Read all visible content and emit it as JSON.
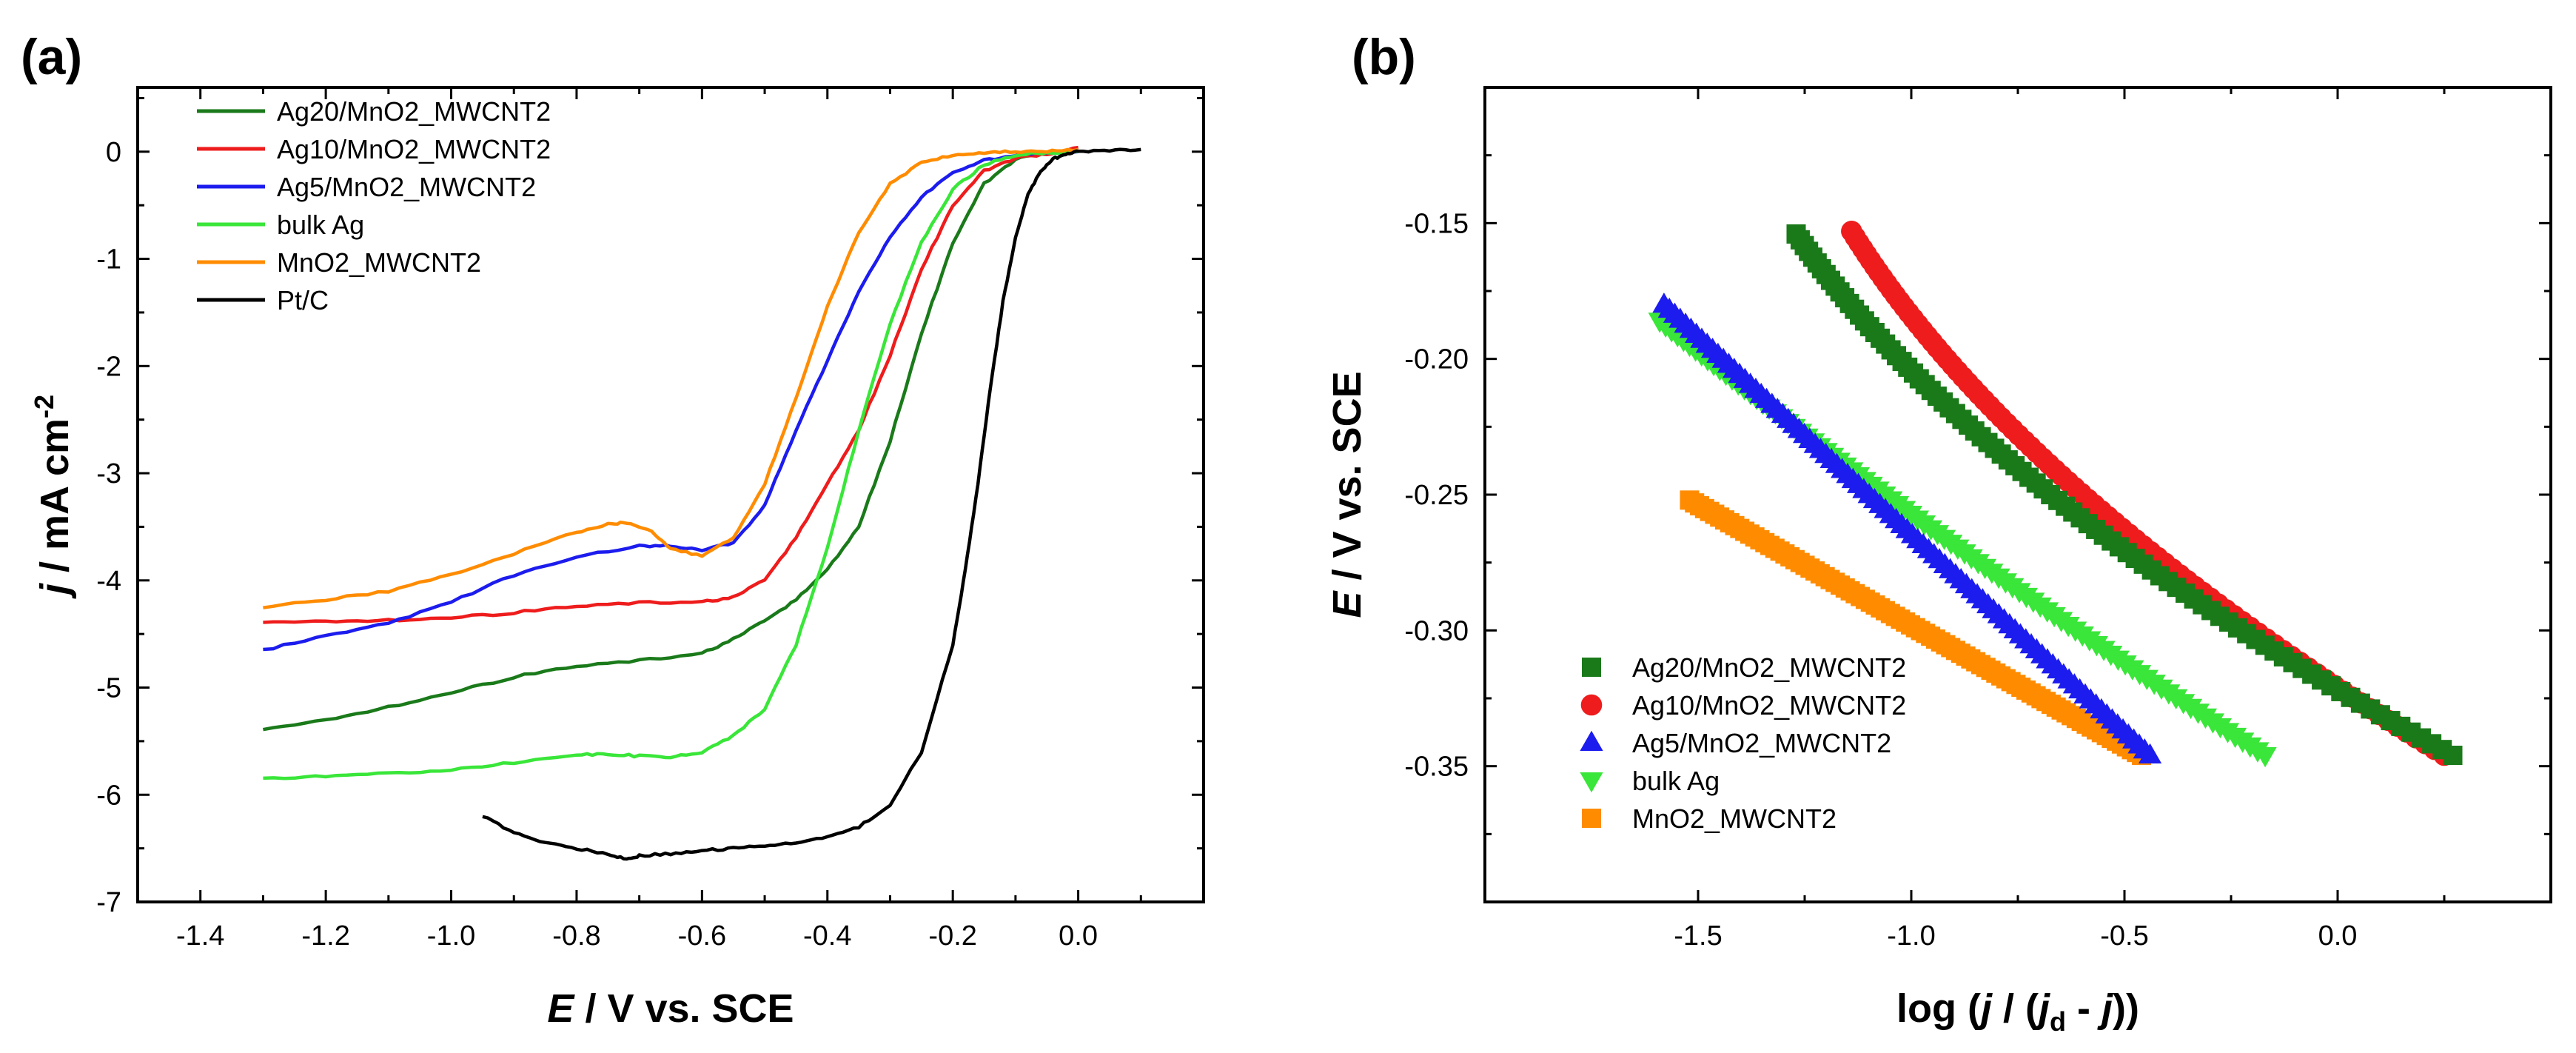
{
  "chart_data": [
    {
      "panel": "(a)",
      "type": "line",
      "xlabel": {
        "italic": "E",
        "rest": " / V vs. SCE"
      },
      "ylabel": {
        "italic": "j",
        "rest": " / mA cm",
        "sup": "-2"
      },
      "xlim": [
        -1.5,
        0.2
      ],
      "ylim": [
        -7,
        0.6
      ],
      "xticks": [
        -1.4,
        -1.2,
        -1.0,
        -0.8,
        -0.6,
        -0.4,
        -0.2,
        0.0
      ],
      "xtick_labels": [
        "-1.4",
        "-1.2",
        "-1.0",
        "-0.8",
        "-0.6",
        "-0.4",
        "-0.2",
        "0.0"
      ],
      "yticks": [
        0,
        -1,
        -2,
        -3,
        -4,
        -5,
        -6,
        -7
      ],
      "ytick_labels": [
        "0",
        "-1",
        "-2",
        "-3",
        "-4",
        "-5",
        "-6",
        "-7"
      ],
      "legend_position": "top-left",
      "series": [
        {
          "name": "Ag20/MnO2_MWCNT2",
          "color": "#1a7a1a",
          "x": [
            -1.3,
            -1.2,
            -1.1,
            -1.0,
            -0.9,
            -0.8,
            -0.7,
            -0.6,
            -0.55,
            -0.5,
            -0.45,
            -0.4,
            -0.35,
            -0.3,
            -0.25,
            -0.2,
            -0.15,
            -0.1,
            -0.05,
            0.0
          ],
          "y": [
            -5.4,
            -5.3,
            -5.18,
            -5.05,
            -4.9,
            -4.8,
            -4.75,
            -4.68,
            -4.55,
            -4.38,
            -4.18,
            -3.9,
            -3.5,
            -2.7,
            -1.7,
            -0.85,
            -0.3,
            -0.07,
            -0.01,
            0.02
          ]
        },
        {
          "name": "Ag10/MnO2_MWCNT2",
          "color": "#ee1c1c",
          "x": [
            -1.3,
            -1.2,
            -1.1,
            -1.0,
            -0.9,
            -0.8,
            -0.7,
            -0.6,
            -0.55,
            -0.5,
            -0.45,
            -0.4,
            -0.35,
            -0.3,
            -0.25,
            -0.2,
            -0.15,
            -0.1,
            -0.05,
            0.0
          ],
          "y": [
            -4.4,
            -4.38,
            -4.37,
            -4.35,
            -4.3,
            -4.24,
            -4.21,
            -4.2,
            -4.16,
            -4.0,
            -3.6,
            -3.1,
            -2.6,
            -1.9,
            -1.1,
            -0.5,
            -0.18,
            -0.06,
            -0.02,
            0.04
          ]
        },
        {
          "name": "Ag5/MnO2_MWCNT2",
          "color": "#1c1cee",
          "x": [
            -1.3,
            -1.2,
            -1.1,
            -1.0,
            -0.9,
            -0.8,
            -0.7,
            -0.65,
            -0.6,
            -0.55,
            -0.5,
            -0.45,
            -0.4,
            -0.35,
            -0.3,
            -0.25,
            -0.2,
            -0.15,
            -0.1,
            -0.05,
            0.0
          ],
          "y": [
            -4.65,
            -4.52,
            -4.4,
            -4.2,
            -3.95,
            -3.78,
            -3.68,
            -3.68,
            -3.72,
            -3.65,
            -3.3,
            -2.6,
            -1.95,
            -1.3,
            -0.8,
            -0.42,
            -0.2,
            -0.08,
            -0.03,
            -0.01,
            0.0
          ]
        },
        {
          "name": "bulk Ag",
          "color": "#39e639",
          "x": [
            -1.3,
            -1.2,
            -1.1,
            -1.0,
            -0.9,
            -0.8,
            -0.75,
            -0.7,
            -0.65,
            -0.6,
            -0.55,
            -0.5,
            -0.45,
            -0.4,
            -0.35,
            -0.3,
            -0.25,
            -0.2,
            -0.15,
            -0.1,
            -0.05,
            0.0
          ],
          "y": [
            -5.85,
            -5.83,
            -5.8,
            -5.77,
            -5.7,
            -5.63,
            -5.62,
            -5.64,
            -5.65,
            -5.6,
            -5.45,
            -5.2,
            -4.6,
            -3.7,
            -2.6,
            -1.6,
            -0.85,
            -0.35,
            -0.12,
            -0.03,
            -0.01,
            0.0
          ]
        },
        {
          "name": "MnO2_MWCNT2",
          "color": "#ff8c00",
          "x": [
            -1.3,
            -1.2,
            -1.1,
            -1.0,
            -0.9,
            -0.8,
            -0.75,
            -0.72,
            -0.68,
            -0.65,
            -0.6,
            -0.55,
            -0.5,
            -0.45,
            -0.4,
            -0.35,
            -0.3,
            -0.25,
            -0.2,
            -0.15,
            -0.1,
            -0.05,
            0.0
          ],
          "y": [
            -4.25,
            -4.18,
            -4.1,
            -3.95,
            -3.75,
            -3.55,
            -3.47,
            -3.46,
            -3.55,
            -3.7,
            -3.77,
            -3.6,
            -3.1,
            -2.3,
            -1.45,
            -0.75,
            -0.3,
            -0.1,
            -0.03,
            -0.01,
            0.0,
            0.0,
            0.02
          ]
        },
        {
          "name": "Pt/C",
          "color": "#000000",
          "x": [
            -0.95,
            -0.9,
            -0.85,
            -0.8,
            -0.75,
            -0.72,
            -0.7,
            -0.65,
            -0.6,
            -0.55,
            -0.5,
            -0.45,
            -0.4,
            -0.35,
            -0.3,
            -0.25,
            -0.2,
            -0.18,
            -0.16,
            -0.14,
            -0.12,
            -0.1,
            -0.08,
            -0.06,
            -0.04,
            -0.02,
            0.0,
            0.05,
            0.1
          ],
          "y": [
            -6.2,
            -6.35,
            -6.45,
            -6.5,
            -6.55,
            -6.6,
            -6.57,
            -6.55,
            -6.52,
            -6.5,
            -6.47,
            -6.45,
            -6.4,
            -6.3,
            -6.1,
            -5.6,
            -4.6,
            -3.9,
            -3.1,
            -2.2,
            -1.4,
            -0.8,
            -0.4,
            -0.18,
            -0.07,
            -0.02,
            0.0,
            0.01,
            0.02
          ]
        }
      ]
    },
    {
      "panel": "(b)",
      "type": "scatter",
      "xlabel": {
        "pre": "log (",
        "i1": "j",
        "mid": " / (",
        "i2": "j",
        "sub": "d",
        "post1": " - ",
        "i3": "j",
        "post2": "))"
      },
      "ylabel": {
        "italic": "E",
        "rest": " / V vs. SCE"
      },
      "xlim": [
        -2.0,
        0.5
      ],
      "ylim": [
        -0.4,
        -0.1
      ],
      "xticks": [
        -1.5,
        -1.0,
        -0.5,
        0.0
      ],
      "xtick_labels": [
        "-1.5",
        "-1.0",
        "-0.5",
        "0.0"
      ],
      "yticks": [
        -0.15,
        -0.2,
        -0.25,
        -0.3,
        -0.35
      ],
      "ytick_labels": [
        "-0.15",
        "-0.20",
        "-0.25",
        "-0.30",
        "-0.35"
      ],
      "legend_position": "bottom-left",
      "series": [
        {
          "name": "Ag20/MnO2_MWCNT2",
          "color": "#1a7a1a",
          "marker": "square",
          "x_start": -1.27,
          "x_end": 0.27,
          "y_start": -0.154,
          "y_end": -0.346,
          "curve": "concave"
        },
        {
          "name": "Ag10/MnO2_MWCNT2",
          "color": "#ee1c1c",
          "marker": "circle",
          "x_start": -1.14,
          "x_end": 0.25,
          "y_start": -0.153,
          "y_end": -0.346,
          "curve": "concave"
        },
        {
          "name": "Ag5/MnO2_MWCNT2",
          "color": "#1c1cee",
          "marker": "triangle-up",
          "x_start": -1.58,
          "x_end": -0.44,
          "y_start": -0.18,
          "y_end": -0.346,
          "curve": "linear"
        },
        {
          "name": "bulk Ag",
          "color": "#39e639",
          "marker": "triangle-down",
          "x_start": -1.59,
          "x_end": -0.17,
          "y_start": -0.186,
          "y_end": -0.346,
          "curve": "slight"
        },
        {
          "name": "MnO2_MWCNT2",
          "color": "#ff8c00",
          "marker": "square",
          "x_start": -1.52,
          "x_end": -0.46,
          "y_start": -0.252,
          "y_end": -0.346,
          "curve": "linear"
        }
      ]
    }
  ]
}
